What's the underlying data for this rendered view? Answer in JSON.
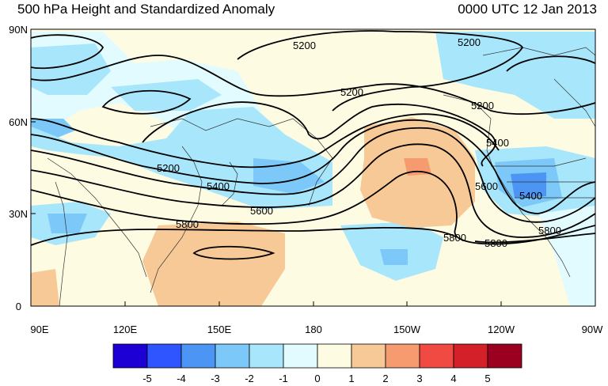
{
  "header": {
    "title": "500 hPa Height and Standardized Anomaly",
    "datetime": "0000 UTC 12 Jan 2013"
  },
  "map": {
    "lat_labels": [
      "90N",
      "60N",
      "30N",
      "0"
    ],
    "lon_labels": [
      "90E",
      "120E",
      "150E",
      "180",
      "150W",
      "120W",
      "90W"
    ],
    "contour_labels": [
      {
        "id": "c5200a",
        "text": "5200"
      },
      {
        "id": "c5200b",
        "text": "5200"
      },
      {
        "id": "c5200c",
        "text": "5200"
      },
      {
        "id": "c5200d",
        "text": "5200"
      },
      {
        "id": "c5200e",
        "text": "5200"
      },
      {
        "id": "c5400a",
        "text": "5400"
      },
      {
        "id": "c5400b",
        "text": "5400"
      },
      {
        "id": "c5400c",
        "text": "5400"
      },
      {
        "id": "c5600a",
        "text": "5600"
      },
      {
        "id": "c5600b",
        "text": "5600"
      },
      {
        "id": "c5800a",
        "text": "5800"
      },
      {
        "id": "c5800b",
        "text": "5800"
      },
      {
        "id": "c5800c",
        "text": "5800"
      },
      {
        "id": "c5800d",
        "text": "5800"
      }
    ]
  },
  "colorbar": {
    "labels": [
      "-5",
      "-4",
      "-3",
      "-2",
      "-1",
      "0",
      "1",
      "2",
      "3",
      "4",
      "5"
    ],
    "colors": [
      "#1c00d4",
      "#2e55ff",
      "#4d95f4",
      "#7cc8f8",
      "#a8e6fb",
      "#e2fbff",
      "#fdfbe2",
      "#f7c996",
      "#f69a70",
      "#f04a43",
      "#d42028",
      "#9b0020"
    ]
  }
}
